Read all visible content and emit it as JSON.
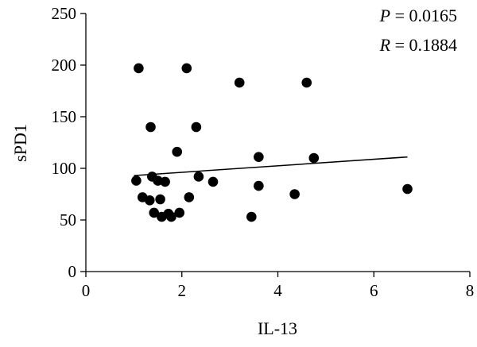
{
  "chart_data": {
    "type": "scatter",
    "xlabel": "IL-13",
    "ylabel": "sPD1",
    "xlim": [
      0,
      8
    ],
    "ylim": [
      0,
      250
    ],
    "xticks": [
      0,
      2,
      4,
      6,
      8
    ],
    "yticks": [
      0,
      50,
      100,
      150,
      200,
      250
    ],
    "grid": false,
    "annotations": [
      {
        "italic": "P",
        "text": " = 0.0165"
      },
      {
        "italic": "R",
        "text": " = 0.1884"
      }
    ],
    "points": [
      {
        "x": 1.1,
        "y": 197
      },
      {
        "x": 2.1,
        "y": 197
      },
      {
        "x": 3.2,
        "y": 183
      },
      {
        "x": 4.6,
        "y": 183
      },
      {
        "x": 1.35,
        "y": 140
      },
      {
        "x": 2.3,
        "y": 140
      },
      {
        "x": 1.9,
        "y": 116
      },
      {
        "x": 3.6,
        "y": 111
      },
      {
        "x": 4.75,
        "y": 110
      },
      {
        "x": 1.05,
        "y": 88
      },
      {
        "x": 1.38,
        "y": 92
      },
      {
        "x": 1.5,
        "y": 88
      },
      {
        "x": 1.65,
        "y": 87
      },
      {
        "x": 2.35,
        "y": 92
      },
      {
        "x": 2.65,
        "y": 87
      },
      {
        "x": 3.6,
        "y": 83
      },
      {
        "x": 4.35,
        "y": 75
      },
      {
        "x": 6.7,
        "y": 80
      },
      {
        "x": 1.18,
        "y": 72
      },
      {
        "x": 1.33,
        "y": 69
      },
      {
        "x": 1.55,
        "y": 70
      },
      {
        "x": 2.15,
        "y": 72
      },
      {
        "x": 1.42,
        "y": 57
      },
      {
        "x": 1.58,
        "y": 53
      },
      {
        "x": 1.72,
        "y": 56
      },
      {
        "x": 1.78,
        "y": 53
      },
      {
        "x": 1.95,
        "y": 57
      },
      {
        "x": 3.45,
        "y": 53
      }
    ],
    "trendline": {
      "x": [
        1.0,
        6.7
      ],
      "y": [
        93,
        111
      ]
    }
  }
}
